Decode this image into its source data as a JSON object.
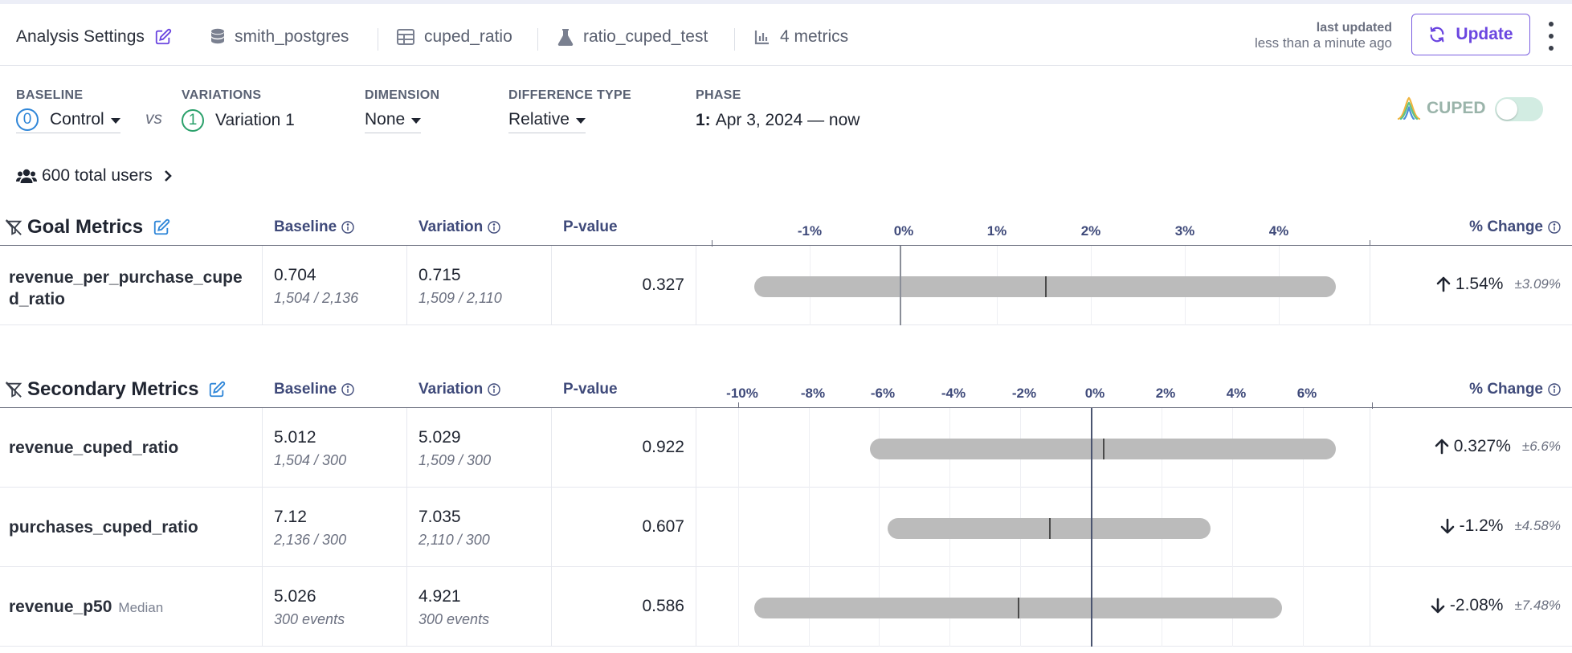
{
  "header": {
    "title": "Analysis Settings",
    "datasource": "smith_postgres",
    "table": "cuped_ratio",
    "experiment": "ratio_cuped_test",
    "metrics_count": "4 metrics",
    "last_updated_label": "last updated",
    "last_updated_value": "less than a minute ago",
    "update_label": "Update"
  },
  "filters": {
    "baseline_label": "BASELINE",
    "baseline_index": "0",
    "baseline_value": "Control",
    "vs": "vs",
    "variations_label": "VARIATIONS",
    "variation_index": "1",
    "variation_value": "Variation 1",
    "dimension_label": "DIMENSION",
    "dimension_value": "None",
    "difference_label": "DIFFERENCE TYPE",
    "difference_value": "Relative",
    "phase_label": "PHASE",
    "phase_number": "1:",
    "phase_value": "Apr 3, 2024 — now",
    "cuped_label": "CUPED",
    "cuped_enabled": false
  },
  "users": {
    "label": "600 total users"
  },
  "columns": {
    "baseline": "Baseline",
    "variation": "Variation",
    "pvalue": "P-value",
    "change": "% Change"
  },
  "goal": {
    "title": "Goal Metrics",
    "ticks": [
      "-1%",
      "0%",
      "1%",
      "2%",
      "3%",
      "4%"
    ],
    "rows": [
      {
        "name_line1": "revenue_per_purchase_cupe",
        "name_line2": "d_ratio",
        "baseline": "0.704",
        "baseline_frac": "1,504 / 2,136",
        "variation": "0.715",
        "variation_frac": "1,509 / 2,110",
        "pvalue": "0.327",
        "change": "1.54%",
        "ci": "±3.09%",
        "direction": "up"
      }
    ]
  },
  "secondary": {
    "title": "Secondary Metrics",
    "ticks": [
      "-10%",
      "-8%",
      "-6%",
      "-4%",
      "-2%",
      "0%",
      "2%",
      "4%",
      "6%"
    ],
    "rows": [
      {
        "name": "revenue_cuped_ratio",
        "baseline": "5.012",
        "baseline_frac": "1,504 / 300",
        "variation": "5.029",
        "variation_frac": "1,509 / 300",
        "pvalue": "0.922",
        "change": "0.327%",
        "ci": "±6.6%",
        "direction": "up"
      },
      {
        "name": "purchases_cuped_ratio",
        "baseline": "7.12",
        "baseline_frac": "2,136 / 300",
        "variation": "7.035",
        "variation_frac": "2,110 / 300",
        "pvalue": "0.607",
        "change": "-1.2%",
        "ci": "±4.58%",
        "direction": "down"
      },
      {
        "name": "revenue_p50",
        "name_sub": "Median",
        "baseline": "5.026",
        "baseline_frac": "300 events",
        "variation": "4.921",
        "variation_frac": "300 events",
        "pvalue": "0.586",
        "change": "-2.08%",
        "ci": "±7.48%",
        "direction": "down"
      }
    ]
  },
  "colors": {
    "accent": "#6b46e0",
    "baseline_circle": "#2f86d8",
    "variation_circle": "#2aa06a",
    "ci_bar": "#bbbbbb",
    "header_text": "#3f4a7a"
  }
}
